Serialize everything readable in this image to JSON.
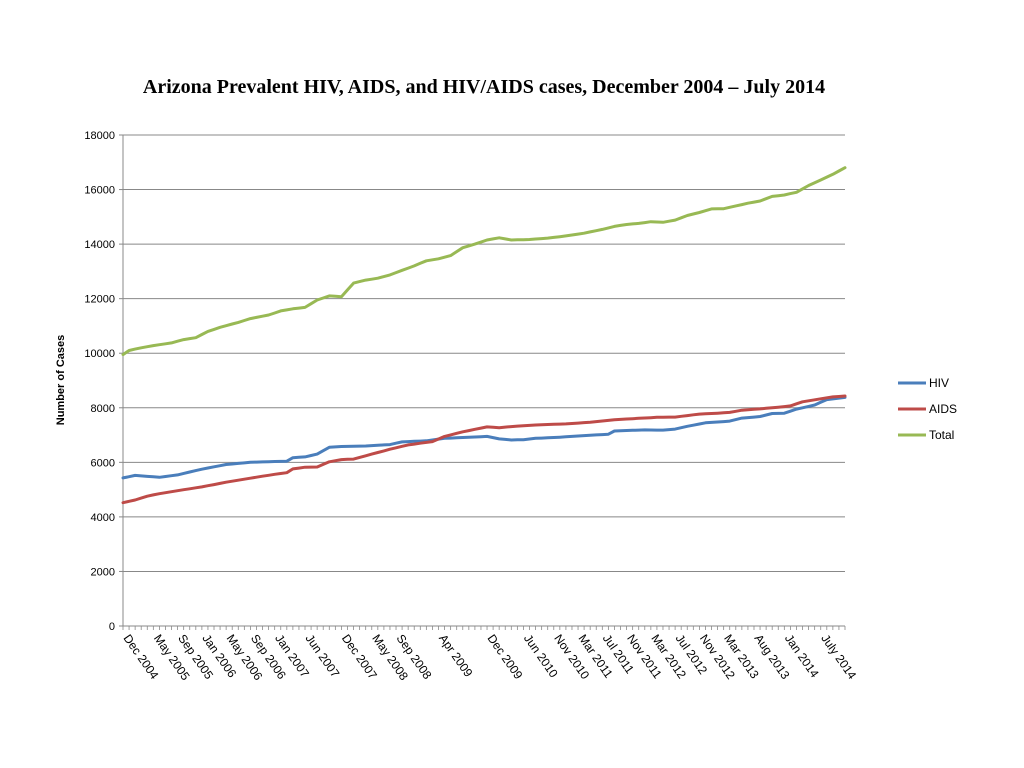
{
  "chart_data": {
    "type": "line",
    "title": "Arizona Prevalent HIV, AIDS, and HIV/AIDS cases, December 2004 – July 2014",
    "xlabel": "",
    "ylabel": "Number of Cases",
    "ylim": [
      0,
      18000
    ],
    "y_ticks": [
      0,
      2000,
      4000,
      6000,
      8000,
      10000,
      12000,
      14000,
      16000,
      18000
    ],
    "grid": true,
    "legend_position": "right",
    "x_tick_labels": [
      "Dec 2004",
      "May 2005",
      "Sep 2005",
      "Jan 2006",
      "May 2006",
      "Sep 2006",
      "Jan 2007",
      "Jun 2007",
      "Dec 2007",
      "May 2008",
      "Sep 2008",
      "Apr 2009",
      "Dec 2009",
      "Jun 2010",
      "Nov 2010",
      "Mar 2011",
      "Jul 2011",
      "Nov 2011",
      "Mar 2012",
      "Jul 2012",
      "Nov 2012",
      "Mar 2013",
      "Aug 2013",
      "Jan 2014",
      "July 2014"
    ],
    "x_tick_index": [
      0,
      5,
      9,
      13,
      17,
      21,
      25,
      30,
      36,
      41,
      45,
      52,
      60,
      66,
      71,
      75,
      79,
      83,
      87,
      91,
      95,
      99,
      104,
      109,
      115
    ],
    "series": [
      {
        "name": "HIV",
        "color": "#4a7ebb",
        "knots": [
          [
            0,
            5430
          ],
          [
            2,
            5520
          ],
          [
            6,
            5450
          ],
          [
            9,
            5540
          ],
          [
            13,
            5750
          ],
          [
            17,
            5920
          ],
          [
            21,
            6000
          ],
          [
            25,
            6030
          ],
          [
            27,
            6040
          ],
          [
            28,
            6170
          ],
          [
            30,
            6200
          ],
          [
            32,
            6300
          ],
          [
            34,
            6550
          ],
          [
            36,
            6580
          ],
          [
            40,
            6600
          ],
          [
            44,
            6650
          ],
          [
            46,
            6750
          ],
          [
            50,
            6790
          ],
          [
            53,
            6880
          ],
          [
            57,
            6920
          ],
          [
            60,
            6950
          ],
          [
            62,
            6860
          ],
          [
            64,
            6820
          ],
          [
            66,
            6830
          ],
          [
            68,
            6880
          ],
          [
            72,
            6920
          ],
          [
            76,
            6980
          ],
          [
            80,
            7030
          ],
          [
            81,
            7150
          ],
          [
            86,
            7190
          ],
          [
            89,
            7180
          ],
          [
            91,
            7220
          ],
          [
            93,
            7320
          ],
          [
            96,
            7450
          ],
          [
            100,
            7510
          ],
          [
            102,
            7620
          ],
          [
            105,
            7680
          ],
          [
            107,
            7790
          ],
          [
            109,
            7800
          ],
          [
            111,
            7950
          ],
          [
            114,
            8100
          ],
          [
            116,
            8300
          ],
          [
            119,
            8380
          ]
        ],
        "values": []
      },
      {
        "name": "AIDS",
        "color": "#be4b48",
        "knots": [
          [
            0,
            4520
          ],
          [
            2,
            4620
          ],
          [
            4,
            4760
          ],
          [
            6,
            4850
          ],
          [
            9,
            4960
          ],
          [
            13,
            5100
          ],
          [
            17,
            5270
          ],
          [
            21,
            5420
          ],
          [
            25,
            5560
          ],
          [
            27,
            5620
          ],
          [
            28,
            5760
          ],
          [
            30,
            5820
          ],
          [
            32,
            5830
          ],
          [
            34,
            6020
          ],
          [
            36,
            6100
          ],
          [
            38,
            6120
          ],
          [
            41,
            6300
          ],
          [
            44,
            6480
          ],
          [
            47,
            6640
          ],
          [
            49,
            6700
          ],
          [
            51,
            6760
          ],
          [
            53,
            6950
          ],
          [
            56,
            7120
          ],
          [
            60,
            7300
          ],
          [
            62,
            7270
          ],
          [
            65,
            7330
          ],
          [
            69,
            7380
          ],
          [
            73,
            7410
          ],
          [
            77,
            7470
          ],
          [
            81,
            7560
          ],
          [
            84,
            7600
          ],
          [
            88,
            7650
          ],
          [
            91,
            7660
          ],
          [
            95,
            7770
          ],
          [
            98,
            7800
          ],
          [
            100,
            7830
          ],
          [
            102,
            7910
          ],
          [
            105,
            7960
          ],
          [
            108,
            8020
          ],
          [
            110,
            8070
          ],
          [
            112,
            8220
          ],
          [
            115,
            8330
          ],
          [
            117,
            8400
          ],
          [
            119,
            8430
          ]
        ],
        "values": []
      },
      {
        "name": "Total",
        "color": "#98b954",
        "knots": [
          [
            0,
            9950
          ],
          [
            1,
            10100
          ],
          [
            3,
            10200
          ],
          [
            5,
            10280
          ],
          [
            8,
            10380
          ],
          [
            10,
            10500
          ],
          [
            12,
            10570
          ],
          [
            14,
            10800
          ],
          [
            16,
            10950
          ],
          [
            19,
            11130
          ],
          [
            21,
            11270
          ],
          [
            24,
            11400
          ],
          [
            26,
            11550
          ],
          [
            28,
            11630
          ],
          [
            30,
            11680
          ],
          [
            32,
            11950
          ],
          [
            34,
            12100
          ],
          [
            36,
            12070
          ],
          [
            38,
            12570
          ],
          [
            40,
            12680
          ],
          [
            42,
            12750
          ],
          [
            44,
            12870
          ],
          [
            46,
            13040
          ],
          [
            48,
            13200
          ],
          [
            50,
            13390
          ],
          [
            52,
            13460
          ],
          [
            54,
            13580
          ],
          [
            56,
            13870
          ],
          [
            58,
            14000
          ],
          [
            60,
            14150
          ],
          [
            62,
            14230
          ],
          [
            64,
            14150
          ],
          [
            67,
            14170
          ],
          [
            70,
            14220
          ],
          [
            73,
            14300
          ],
          [
            76,
            14400
          ],
          [
            79,
            14540
          ],
          [
            81,
            14650
          ],
          [
            83,
            14720
          ],
          [
            85,
            14760
          ],
          [
            87,
            14820
          ],
          [
            89,
            14800
          ],
          [
            91,
            14880
          ],
          [
            93,
            15050
          ],
          [
            95,
            15160
          ],
          [
            97,
            15290
          ],
          [
            99,
            15300
          ],
          [
            101,
            15400
          ],
          [
            103,
            15500
          ],
          [
            105,
            15580
          ],
          [
            107,
            15750
          ],
          [
            109,
            15800
          ],
          [
            111,
            15900
          ],
          [
            113,
            16150
          ],
          [
            115,
            16350
          ],
          [
            117,
            16560
          ],
          [
            119,
            16800
          ]
        ],
        "values": []
      }
    ]
  }
}
